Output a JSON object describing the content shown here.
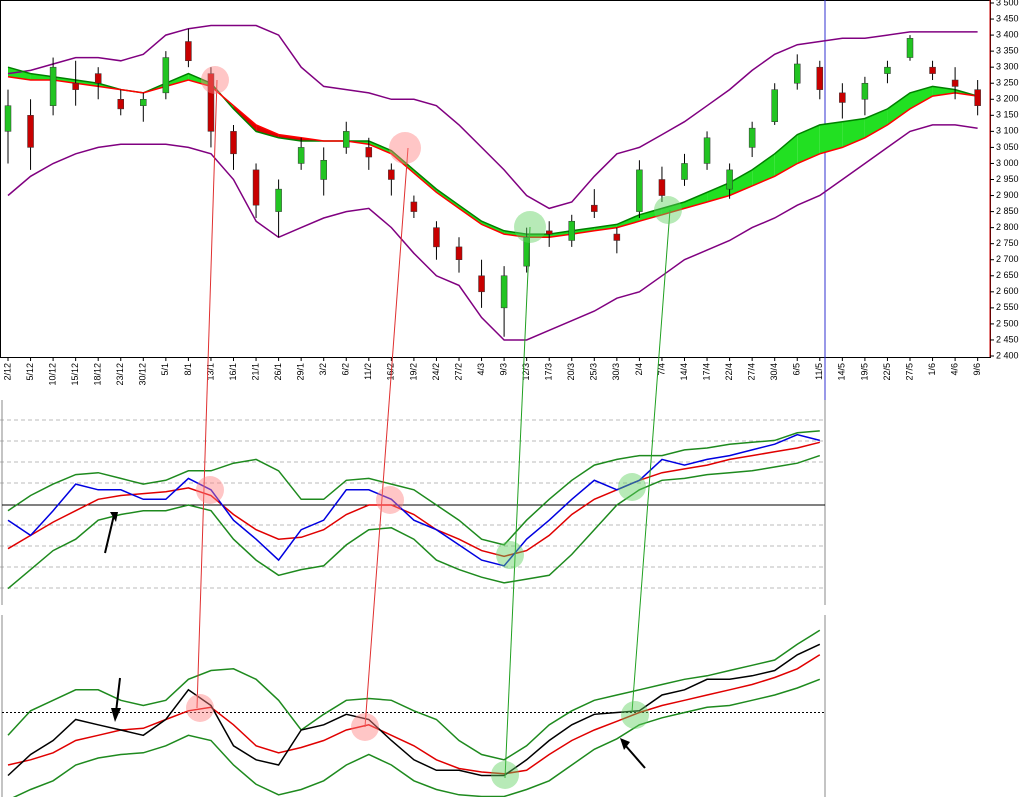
{
  "chart_data": [
    {
      "type": "candlestick",
      "categories": [
        "2/12",
        "5/12",
        "10/12",
        "15/12",
        "18/12",
        "23/12",
        "30/12",
        "5/1",
        "8/1",
        "13/1",
        "16/1",
        "21/1",
        "26/1",
        "29/1",
        "3/2",
        "6/2",
        "11/2",
        "16/2",
        "19/2",
        "24/2",
        "27/2",
        "4/3",
        "9/3",
        "12/3",
        "17/3",
        "20/3",
        "25/3",
        "30/3",
        "2/4",
        "7/4",
        "14/4",
        "17/4",
        "22/4",
        "27/4",
        "30/4",
        "6/5",
        "11/5",
        "14/5",
        "19/5",
        "22/5",
        "27/5",
        "1/6",
        "4/6",
        "9/6"
      ],
      "open": [
        3100,
        3150,
        3180,
        3250,
        3280,
        3200,
        3180,
        3220,
        3380,
        3280,
        3100,
        2980,
        2850,
        3000,
        2950,
        3050,
        3050,
        2980,
        2880,
        2800,
        2740,
        2650,
        2550,
        2680,
        2790,
        2760,
        2870,
        2780,
        2850,
        2950,
        2950,
        3000,
        2920,
        3050,
        3130,
        3250,
        3300,
        3220,
        3200,
        3280,
        3330,
        3300,
        3260,
        3230
      ],
      "high": [
        3230,
        3200,
        3330,
        3320,
        3300,
        3230,
        3220,
        3350,
        3420,
        3300,
        3120,
        3000,
        2950,
        3080,
        3050,
        3130,
        3080,
        3000,
        2900,
        2820,
        2770,
        2700,
        2680,
        2800,
        2820,
        2840,
        2920,
        2800,
        3010,
        2990,
        3030,
        3100,
        3000,
        3130,
        3250,
        3340,
        3320,
        3250,
        3270,
        3320,
        3400,
        3320,
        3300,
        3260
      ],
      "low": [
        3000,
        2980,
        3150,
        3180,
        3200,
        3150,
        3130,
        3200,
        3300,
        3050,
        2980,
        2830,
        2770,
        2980,
        2900,
        3030,
        2980,
        2900,
        2830,
        2700,
        2660,
        2550,
        2460,
        2660,
        2740,
        2740,
        2830,
        2720,
        2830,
        2880,
        2930,
        2980,
        2890,
        3020,
        3120,
        3230,
        3200,
        3140,
        3150,
        3250,
        3320,
        3260,
        3200,
        3150
      ],
      "close": [
        3180,
        3050,
        3300,
        3230,
        3250,
        3170,
        3200,
        3330,
        3320,
        3100,
        3030,
        2870,
        2920,
        3050,
        3010,
        3100,
        3020,
        2950,
        2850,
        2740,
        2700,
        2600,
        2650,
        2770,
        2780,
        2820,
        2850,
        2760,
        2980,
        2900,
        3000,
        3080,
        2980,
        3110,
        3230,
        3310,
        3230,
        3190,
        3250,
        3300,
        3390,
        3280,
        3240,
        3180
      ],
      "up_color": "#22c422",
      "down_color": "#c80000",
      "series": [
        {
          "name": "upper",
          "color": "#800080",
          "values": [
            3280,
            3290,
            3310,
            3330,
            3330,
            3320,
            3340,
            3400,
            3420,
            3430,
            3430,
            3430,
            3400,
            3300,
            3240,
            3230,
            3220,
            3200,
            3200,
            3180,
            3120,
            3050,
            2980,
            2900,
            2860,
            2880,
            2960,
            3030,
            3050,
            3090,
            3130,
            3180,
            3230,
            3290,
            3340,
            3370,
            3380,
            3390,
            3390,
            3400,
            3410,
            3410,
            3410,
            3410
          ]
        },
        {
          "name": "lower",
          "color": "#800080",
          "values": [
            2900,
            2960,
            3000,
            3030,
            3050,
            3060,
            3060,
            3060,
            3050,
            3030,
            2950,
            2820,
            2770,
            2800,
            2830,
            2850,
            2860,
            2800,
            2720,
            2650,
            2620,
            2520,
            2450,
            2450,
            2480,
            2510,
            2540,
            2580,
            2600,
            2650,
            2700,
            2730,
            2760,
            2800,
            2830,
            2870,
            2900,
            2950,
            3000,
            3050,
            3100,
            3120,
            3120,
            3110
          ]
        },
        {
          "name": "fast",
          "color": "#008000",
          "values": [
            3300,
            3280,
            3270,
            3260,
            3250,
            3230,
            3220,
            3250,
            3280,
            3250,
            3170,
            3100,
            3080,
            3070,
            3070,
            3070,
            3070,
            3040,
            2980,
            2920,
            2870,
            2820,
            2790,
            2780,
            2780,
            2790,
            2800,
            2810,
            2840,
            2860,
            2880,
            2910,
            2940,
            2980,
            3030,
            3090,
            3120,
            3130,
            3140,
            3170,
            3220,
            3240,
            3230,
            3210
          ]
        },
        {
          "name": "slow",
          "color": "#ff0000",
          "values": [
            3270,
            3260,
            3260,
            3250,
            3240,
            3230,
            3220,
            3240,
            3260,
            3240,
            3180,
            3120,
            3090,
            3080,
            3070,
            3070,
            3060,
            3030,
            2970,
            2910,
            2860,
            2810,
            2780,
            2770,
            2770,
            2780,
            2790,
            2800,
            2820,
            2840,
            2860,
            2880,
            2900,
            2930,
            2960,
            3000,
            3030,
            3050,
            3080,
            3120,
            3170,
            3210,
            3220,
            3210
          ]
        }
      ],
      "ylim": [
        2400,
        3500
      ],
      "yticks": [
        {
          "value": 2400,
          "label": "2 400"
        },
        {
          "value": 2450,
          "label": "2 450"
        },
        {
          "value": 2500,
          "label": "2 500"
        },
        {
          "value": 2550,
          "label": "2 550"
        },
        {
          "value": 2600,
          "label": "2 600"
        },
        {
          "value": 2650,
          "label": "2 650"
        },
        {
          "value": 2700,
          "label": "2 700"
        },
        {
          "value": 2750,
          "label": "2 750"
        },
        {
          "value": 2800,
          "label": "2 800"
        },
        {
          "value": 2850,
          "label": "2 850"
        },
        {
          "value": 2900,
          "label": "2 900"
        },
        {
          "value": 2950,
          "label": "2 950"
        },
        {
          "value": 3000,
          "label": "3 000"
        },
        {
          "value": 3050,
          "label": "3 050"
        },
        {
          "value": 3100,
          "label": "3 100"
        },
        {
          "value": 3150,
          "label": "3 150"
        },
        {
          "value": 3200,
          "label": "3 200"
        },
        {
          "value": 3250,
          "label": "3 250"
        },
        {
          "value": 3300,
          "label": "3 300"
        },
        {
          "value": 3350,
          "label": "3 350"
        },
        {
          "value": 3400,
          "label": "3 400"
        },
        {
          "value": 3450,
          "label": "3 450"
        },
        {
          "value": 3500,
          "label": "3 500"
        }
      ]
    },
    {
      "type": "line",
      "ylim": [
        0,
        100
      ],
      "reference_line": 50,
      "series": [
        {
          "name": "upper",
          "color": "#1e8a1e",
          "values": [
            47,
            55,
            61,
            66,
            67,
            64,
            61,
            63,
            68,
            68,
            72,
            74,
            68,
            53,
            53,
            63,
            64,
            61,
            58,
            50,
            42,
            32,
            29,
            42,
            53,
            63,
            71,
            74,
            76,
            76,
            79,
            80,
            82,
            83,
            84,
            88,
            89
          ]
        },
        {
          "name": "lower",
          "color": "#1e8a1e",
          "values": [
            6,
            16,
            26,
            32,
            42,
            45,
            47,
            47,
            50,
            47,
            32,
            21,
            13,
            16,
            18,
            29,
            37,
            38,
            32,
            21,
            16,
            12,
            9,
            11,
            13,
            24,
            37,
            50,
            58,
            63,
            64,
            66,
            67,
            68,
            70,
            72,
            76
          ]
        },
        {
          "name": "average",
          "color": "#e00000",
          "values": [
            27,
            34,
            41,
            47,
            53,
            55,
            56,
            57,
            59,
            55,
            45,
            37,
            32,
            33,
            37,
            45,
            50,
            50,
            45,
            37,
            32,
            26,
            23,
            26,
            34,
            45,
            53,
            58,
            63,
            67,
            69,
            71,
            74,
            76,
            78,
            80,
            83
          ]
        },
        {
          "name": "line",
          "color": "#0000e0",
          "values": [
            42,
            34,
            47,
            61,
            58,
            58,
            53,
            53,
            64,
            58,
            42,
            32,
            21,
            37,
            42,
            58,
            58,
            53,
            42,
            37,
            29,
            21,
            18,
            32,
            42,
            53,
            63,
            58,
            63,
            74,
            71,
            74,
            76,
            79,
            82,
            87,
            84
          ]
        }
      ]
    },
    {
      "type": "line",
      "ylim": [
        0,
        100
      ],
      "reference_line": 50,
      "series": [
        {
          "name": "upper",
          "color": "#1e8a1e",
          "values": [
            37,
            51,
            57,
            63,
            63,
            57,
            54,
            57,
            69,
            74,
            75,
            69,
            57,
            40,
            49,
            57,
            58,
            57,
            51,
            46,
            34,
            26,
            23,
            31,
            43,
            51,
            57,
            60,
            63,
            66,
            69,
            71,
            74,
            77,
            80,
            89,
            97
          ]
        },
        {
          "name": "lower",
          "color": "#1e8a1e",
          "values": [
            0,
            6,
            11,
            20,
            24,
            26,
            27,
            31,
            37,
            34,
            20,
            9,
            3,
            6,
            11,
            20,
            26,
            20,
            11,
            6,
            3,
            2,
            2,
            6,
            11,
            20,
            29,
            35,
            43,
            47,
            50,
            53,
            54,
            57,
            60,
            64,
            69
          ]
        },
        {
          "name": "average",
          "color": "#e00000",
          "values": [
            20,
            23,
            27,
            34,
            37,
            40,
            41,
            46,
            51,
            53,
            43,
            31,
            27,
            30,
            34,
            40,
            43,
            37,
            31,
            23,
            18,
            16,
            15,
            17,
            26,
            34,
            40,
            45,
            50,
            54,
            57,
            60,
            63,
            66,
            70,
            75,
            83
          ]
        },
        {
          "name": "line",
          "color": "#000000",
          "values": [
            14,
            26,
            34,
            46,
            43,
            40,
            37,
            46,
            63,
            54,
            31,
            23,
            20,
            40,
            43,
            49,
            46,
            34,
            23,
            17,
            17,
            14,
            14,
            23,
            34,
            43,
            49,
            50,
            51,
            60,
            63,
            69,
            69,
            71,
            74,
            83,
            89
          ]
        }
      ]
    }
  ]
}
